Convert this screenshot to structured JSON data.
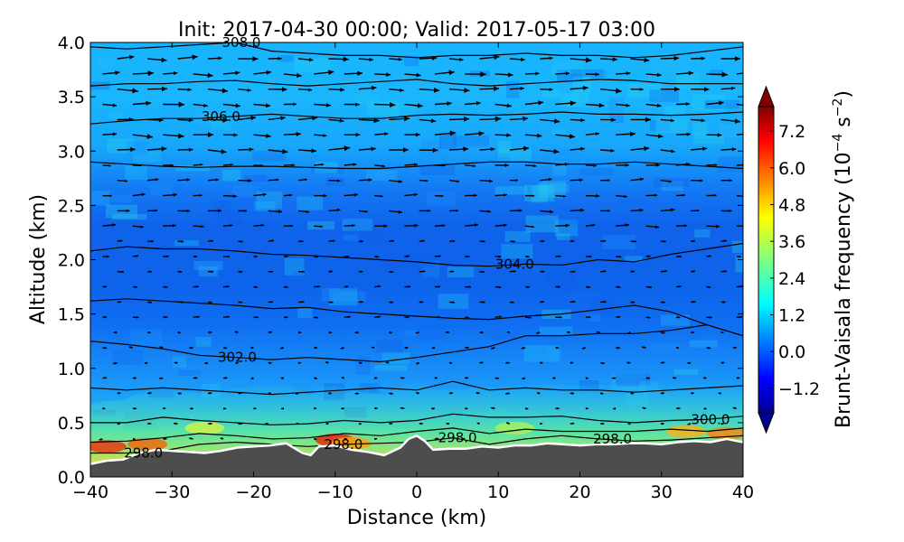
{
  "chart_data": {
    "type": "heatmap",
    "title": "Init: 2017-04-30 00:00; Valid: 2017-05-17 03:00",
    "xlabel": "Distance (km)",
    "ylabel": "Altitude (km)",
    "xlim": [
      -40,
      40
    ],
    "ylim": [
      0,
      4
    ],
    "x_ticks": [
      "−40",
      "−30",
      "−20",
      "−10",
      "0",
      "10",
      "20",
      "30",
      "40"
    ],
    "y_ticks": [
      "0.0",
      "0.5",
      "1.0",
      "1.5",
      "2.0",
      "2.5",
      "3.0",
      "3.5",
      "4.0"
    ],
    "colorbar": {
      "label_main": "Brunt-Vaisala frequency (10",
      "label_exp1": "−4",
      "label_mid": " s",
      "label_exp2": "−2",
      "label_end": ")",
      "ticks": [
        "−1.2",
        "0.0",
        "1.2",
        "2.4",
        "3.6",
        "4.8",
        "6.0",
        "7.2"
      ],
      "tick_values": [
        -1.2,
        0.0,
        1.2,
        2.4,
        3.6,
        4.8,
        6.0,
        7.2
      ],
      "range": [
        -2.0,
        8.0
      ],
      "colormap": "jet",
      "extend": "both"
    },
    "terrain_profile": {
      "x": [
        -40,
        -38,
        -36,
        -34,
        -32,
        -30,
        -28,
        -26,
        -24,
        -22,
        -20,
        -18,
        -16,
        -14,
        -13,
        -12,
        -10,
        -8,
        -6,
        -4,
        -2,
        -1,
        0,
        1,
        2,
        4,
        6,
        8,
        10,
        12,
        14,
        16,
        18,
        20,
        22,
        24,
        26,
        28,
        30,
        32,
        34,
        36,
        38,
        40
      ],
      "y": [
        0.12,
        0.15,
        0.16,
        0.22,
        0.25,
        0.24,
        0.23,
        0.22,
        0.24,
        0.27,
        0.28,
        0.29,
        0.31,
        0.22,
        0.2,
        0.28,
        0.29,
        0.25,
        0.23,
        0.2,
        0.27,
        0.35,
        0.38,
        0.33,
        0.25,
        0.26,
        0.26,
        0.28,
        0.27,
        0.29,
        0.29,
        0.31,
        0.3,
        0.29,
        0.3,
        0.3,
        0.31,
        0.31,
        0.3,
        0.32,
        0.33,
        0.32,
        0.35,
        0.32
      ]
    },
    "theta_contours": [
      {
        "value": 298.0,
        "label": "298.0",
        "y": [
          0.22,
          0.22,
          0.24,
          0.3,
          0.32,
          0.3,
          0.28,
          0.3,
          0.31,
          0.32,
          0.36,
          0.3,
          0.35,
          0.38,
          0.35,
          0.33,
          0.34,
          0.36,
          0.38
        ]
      },
      {
        "value": 299.0,
        "label": "",
        "y": [
          0.32,
          0.33,
          0.36,
          0.4,
          0.38,
          0.35,
          0.36,
          0.4,
          0.38,
          0.42,
          0.45,
          0.4,
          0.44,
          0.42,
          0.42,
          0.42,
          0.44,
          0.42,
          0.45
        ]
      },
      {
        "value": 300.0,
        "label": "300.0",
        "y": [
          0.5,
          0.5,
          0.55,
          0.52,
          0.5,
          0.48,
          0.49,
          0.52,
          0.5,
          0.52,
          0.58,
          0.55,
          0.55,
          0.56,
          0.52,
          0.5,
          0.52,
          0.53,
          0.56
        ]
      },
      {
        "value": 301.0,
        "label": "",
        "y": [
          0.82,
          0.8,
          0.82,
          0.8,
          0.78,
          0.76,
          0.78,
          0.8,
          0.82,
          0.8,
          0.88,
          0.8,
          0.82,
          0.8,
          0.8,
          0.78,
          0.8,
          0.82,
          0.84
        ]
      },
      {
        "value": 302.0,
        "label": "302.0",
        "y": [
          1.25,
          1.22,
          1.18,
          1.12,
          1.1,
          1.08,
          1.1,
          1.08,
          1.06,
          1.1,
          1.15,
          1.2,
          1.3,
          1.3,
          1.32,
          1.32,
          1.35,
          1.4,
          1.3
        ]
      },
      {
        "value": 303.0,
        "label": "",
        "y": [
          1.62,
          1.64,
          1.62,
          1.6,
          1.58,
          1.55,
          1.56,
          1.52,
          1.5,
          1.48,
          1.46,
          1.45,
          1.48,
          1.5,
          1.54,
          1.58,
          1.52,
          1.4,
          1.3
        ]
      },
      {
        "value": 304.0,
        "label": "304.0",
        "y": [
          2.08,
          2.12,
          2.1,
          2.1,
          2.08,
          2.05,
          2.04,
          2.02,
          2.0,
          1.98,
          1.95,
          1.94,
          1.96,
          1.95,
          2.0,
          1.98,
          2.05,
          2.1,
          2.15
        ]
      },
      {
        "value": 305.0,
        "label": "",
        "y": [
          2.9,
          2.88,
          2.86,
          2.85,
          2.86,
          2.86,
          2.85,
          2.84,
          2.84,
          2.86,
          2.88,
          2.9,
          2.9,
          2.88,
          2.88,
          2.9,
          2.88,
          2.86,
          2.84
        ]
      },
      {
        "value": 306.0,
        "label": "306.0",
        "y": [
          3.25,
          3.28,
          3.3,
          3.3,
          3.32,
          3.34,
          3.32,
          3.3,
          3.3,
          3.33,
          3.34,
          3.33,
          3.34,
          3.36,
          3.34,
          3.34,
          3.33,
          3.34,
          3.36
        ]
      },
      {
        "value": 307.0,
        "label": "",
        "y": [
          3.6,
          3.62,
          3.62,
          3.64,
          3.65,
          3.62,
          3.6,
          3.62,
          3.64,
          3.66,
          3.62,
          3.6,
          3.62,
          3.64,
          3.66,
          3.65,
          3.62,
          3.62,
          3.62
        ]
      },
      {
        "value": 308.0,
        "label": "308.0",
        "y": [
          3.96,
          3.94,
          3.96,
          3.98,
          4.0,
          3.92,
          3.9,
          3.88,
          3.88,
          3.86,
          3.88,
          3.88,
          3.9,
          3.88,
          3.88,
          3.86,
          3.88,
          3.92,
          3.96
        ]
      }
    ]
  }
}
